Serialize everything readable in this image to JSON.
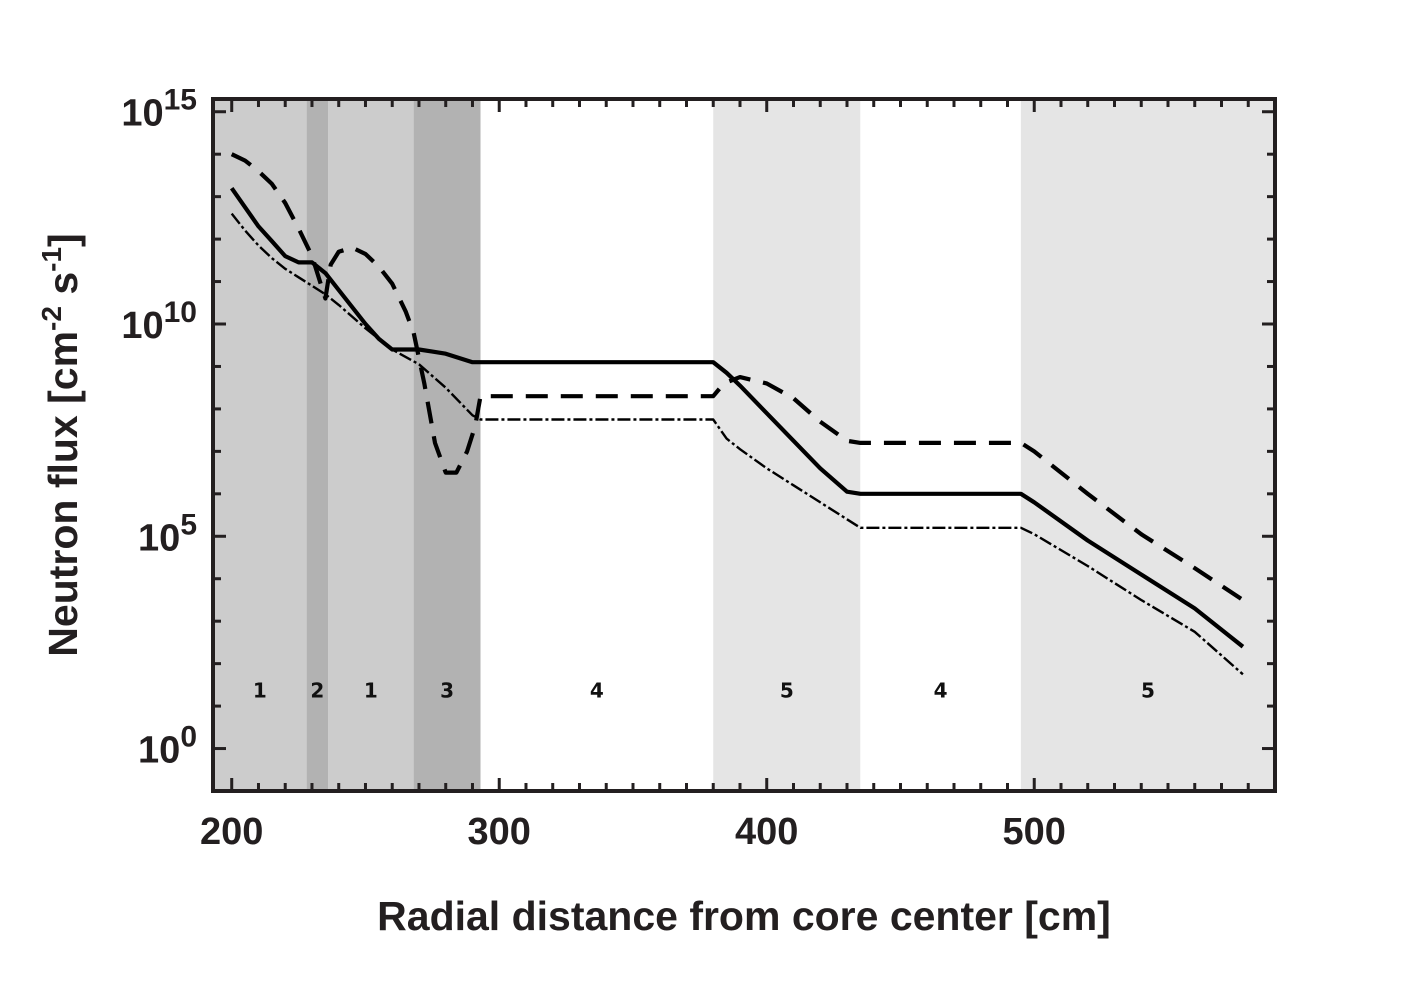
{
  "chart_data": {
    "type": "line",
    "title": "",
    "xlabel": "Radial distance from core center [cm]",
    "ylabel_parts": {
      "main": "Neutron flux [cm",
      "exp1": "-2",
      "mid": " s",
      "exp2": "-1",
      "end": "]"
    },
    "xlim": [
      193,
      590
    ],
    "ylim_log10": [
      -1,
      15.3
    ],
    "x_ticks": [
      {
        "value": 200,
        "label": "200"
      },
      {
        "value": 300,
        "label": "300"
      },
      {
        "value": 400,
        "label": "400"
      },
      {
        "value": 500,
        "label": "500"
      }
    ],
    "y_ticks": [
      {
        "exponent": 0,
        "base": "10",
        "power": "0"
      },
      {
        "exponent": 5,
        "base": "10",
        "power": "5"
      },
      {
        "exponent": 10,
        "base": "10",
        "power": "10"
      },
      {
        "exponent": 15,
        "base": "10",
        "power": "15"
      }
    ],
    "regions": [
      {
        "x0": 193,
        "x1": 228,
        "label": "1",
        "shade": "#cccccc"
      },
      {
        "x0": 228,
        "x1": 236,
        "label": "2",
        "shade": "#b2b2b2"
      },
      {
        "x0": 236,
        "x1": 268,
        "label": "1",
        "shade": "#cccccc"
      },
      {
        "x0": 268,
        "x1": 293,
        "label": "3",
        "shade": "#b2b2b2"
      },
      {
        "x0": 293,
        "x1": 380,
        "label": "4",
        "shade": "#ffffff"
      },
      {
        "x0": 380,
        "x1": 435,
        "label": "5",
        "shade": "#e5e5e5"
      },
      {
        "x0": 435,
        "x1": 495,
        "label": "4",
        "shade": "#ffffff"
      },
      {
        "x0": 495,
        "x1": 590,
        "label": "5",
        "shade": "#e5e5e5"
      }
    ],
    "region_label_log10": 1.2,
    "series": [
      {
        "name": "solid",
        "style": "solid",
        "x": [
          200,
          205,
          210,
          215,
          220,
          225,
          230,
          235,
          240,
          245,
          250,
          255,
          260,
          265,
          270,
          275,
          280,
          285,
          290,
          293,
          300,
          320,
          340,
          360,
          380,
          385,
          390,
          400,
          410,
          420,
          430,
          435,
          450,
          470,
          495,
          500,
          520,
          540,
          560,
          578
        ],
        "y_log10": [
          13.2,
          12.75,
          12.3,
          11.95,
          11.6,
          11.45,
          11.45,
          11.2,
          10.8,
          10.4,
          10.0,
          9.65,
          9.4,
          9.4,
          9.4,
          9.35,
          9.3,
          9.2,
          9.1,
          9.1,
          9.1,
          9.1,
          9.1,
          9.1,
          9.1,
          8.85,
          8.55,
          7.9,
          7.25,
          6.6,
          6.05,
          6.0,
          6.0,
          6.0,
          6.0,
          5.8,
          4.9,
          4.1,
          3.3,
          2.4
        ]
      },
      {
        "name": "dashed",
        "style": "dashed",
        "x": [
          200,
          205,
          210,
          215,
          220,
          225,
          230,
          233,
          235,
          237,
          240,
          245,
          250,
          255,
          260,
          265,
          268,
          272,
          276,
          280,
          284,
          288,
          291,
          293,
          300,
          320,
          340,
          360,
          380,
          384,
          390,
          400,
          410,
          420,
          430,
          435,
          450,
          470,
          495,
          500,
          520,
          540,
          560,
          578
        ],
        "y_log10": [
          14.0,
          13.85,
          13.6,
          13.3,
          12.85,
          12.25,
          11.6,
          11.0,
          10.6,
          11.4,
          11.7,
          11.8,
          11.65,
          11.35,
          10.95,
          10.3,
          9.8,
          8.6,
          7.2,
          6.5,
          6.5,
          7.0,
          7.6,
          8.3,
          8.3,
          8.3,
          8.3,
          8.3,
          8.3,
          8.6,
          8.75,
          8.6,
          8.25,
          7.7,
          7.25,
          7.2,
          7.2,
          7.2,
          7.2,
          7.0,
          6.0,
          5.05,
          4.25,
          3.5
        ]
      },
      {
        "name": "dash-dot",
        "style": "dashdot",
        "x": [
          200,
          205,
          210,
          215,
          220,
          225,
          230,
          235,
          240,
          250,
          260,
          270,
          280,
          290,
          293,
          300,
          320,
          340,
          360,
          380,
          385,
          390,
          400,
          410,
          420,
          430,
          435,
          450,
          470,
          495,
          500,
          520,
          540,
          560,
          578
        ],
        "y_log10": [
          12.6,
          12.2,
          11.85,
          11.55,
          11.3,
          11.1,
          10.9,
          10.7,
          10.45,
          9.9,
          9.4,
          9.05,
          8.5,
          7.85,
          7.75,
          7.75,
          7.75,
          7.75,
          7.75,
          7.75,
          7.3,
          7.05,
          6.6,
          6.2,
          5.8,
          5.4,
          5.2,
          5.2,
          5.2,
          5.2,
          5.05,
          4.3,
          3.5,
          2.75,
          1.75
        ]
      }
    ]
  }
}
